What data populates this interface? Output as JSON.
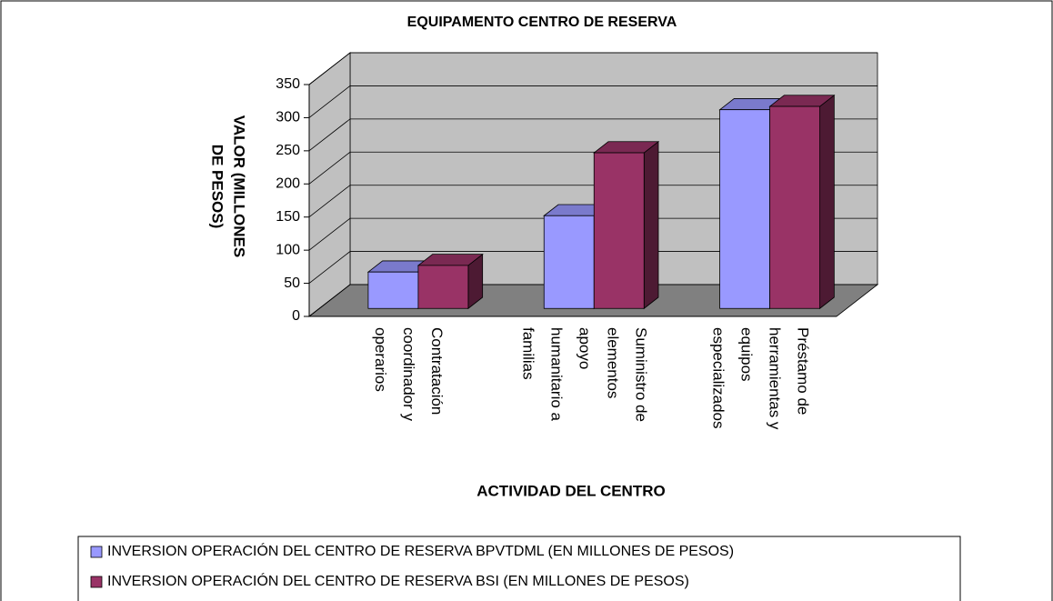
{
  "chart_data": {
    "type": "bar3d",
    "title": "EQUIPAMENTO CENTRO DE RESERVA",
    "y_label": "VALOR (MILLONES DE PESOS)",
    "x_label": "ACTIVIDAD DEL CENTRO",
    "categories": [
      "Contratación coordinador y operarios",
      "Suministro de elementos apoyo humanitario a familias",
      "Préstamo de herramientas y equipos especializados"
    ],
    "series": [
      {
        "name": "INVERSION OPERACIÓN DEL CENTRO DE RESERVA BPVTDML (EN MILLONES DE PESOS)",
        "color": "#9999ff",
        "values": [
          55,
          140,
          300
        ]
      },
      {
        "name": "INVERSION OPERACIÓN DEL CENTRO DE RESERVA BSI (EN MILLONES DE PESOS)",
        "color": "#993366",
        "values": [
          65,
          235,
          305
        ]
      }
    ],
    "ylim": [
      0,
      350
    ],
    "yticks": [
      0,
      50,
      100,
      150,
      200,
      250,
      300,
      350
    ],
    "grid": true,
    "legend": "bottom"
  }
}
